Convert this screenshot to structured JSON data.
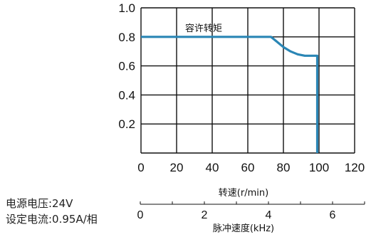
{
  "chart_data": {
    "type": "line",
    "title": "",
    "xlabel": "转速(r/min)",
    "ylabel": "",
    "xlim": [
      0,
      120
    ],
    "ylim": [
      0,
      1.0
    ],
    "x_ticks": [
      0,
      20,
      40,
      60,
      80,
      100,
      120
    ],
    "y_ticks": [
      0.2,
      0.4,
      0.6,
      0.8,
      1.0
    ],
    "grid": true,
    "series": [
      {
        "name": "容许转矩",
        "color": "#2a86b5",
        "points": [
          [
            0,
            0.8
          ],
          [
            73,
            0.8
          ],
          [
            76,
            0.77
          ],
          [
            80,
            0.73
          ],
          [
            84,
            0.7
          ],
          [
            88,
            0.68
          ],
          [
            92,
            0.67
          ],
          [
            99,
            0.67
          ],
          [
            99,
            0
          ]
        ]
      }
    ],
    "annotations": [
      {
        "text": "容许转矩",
        "x": 30,
        "y": 0.8
      }
    ],
    "secondary_axis": {
      "label": "脉冲速度(kHz)",
      "ticks": [
        0,
        2,
        4,
        6
      ],
      "range": [
        0,
        7
      ]
    }
  },
  "notes": {
    "voltage": "电源电压:24V",
    "current": "设定电流:0.95A/相"
  }
}
